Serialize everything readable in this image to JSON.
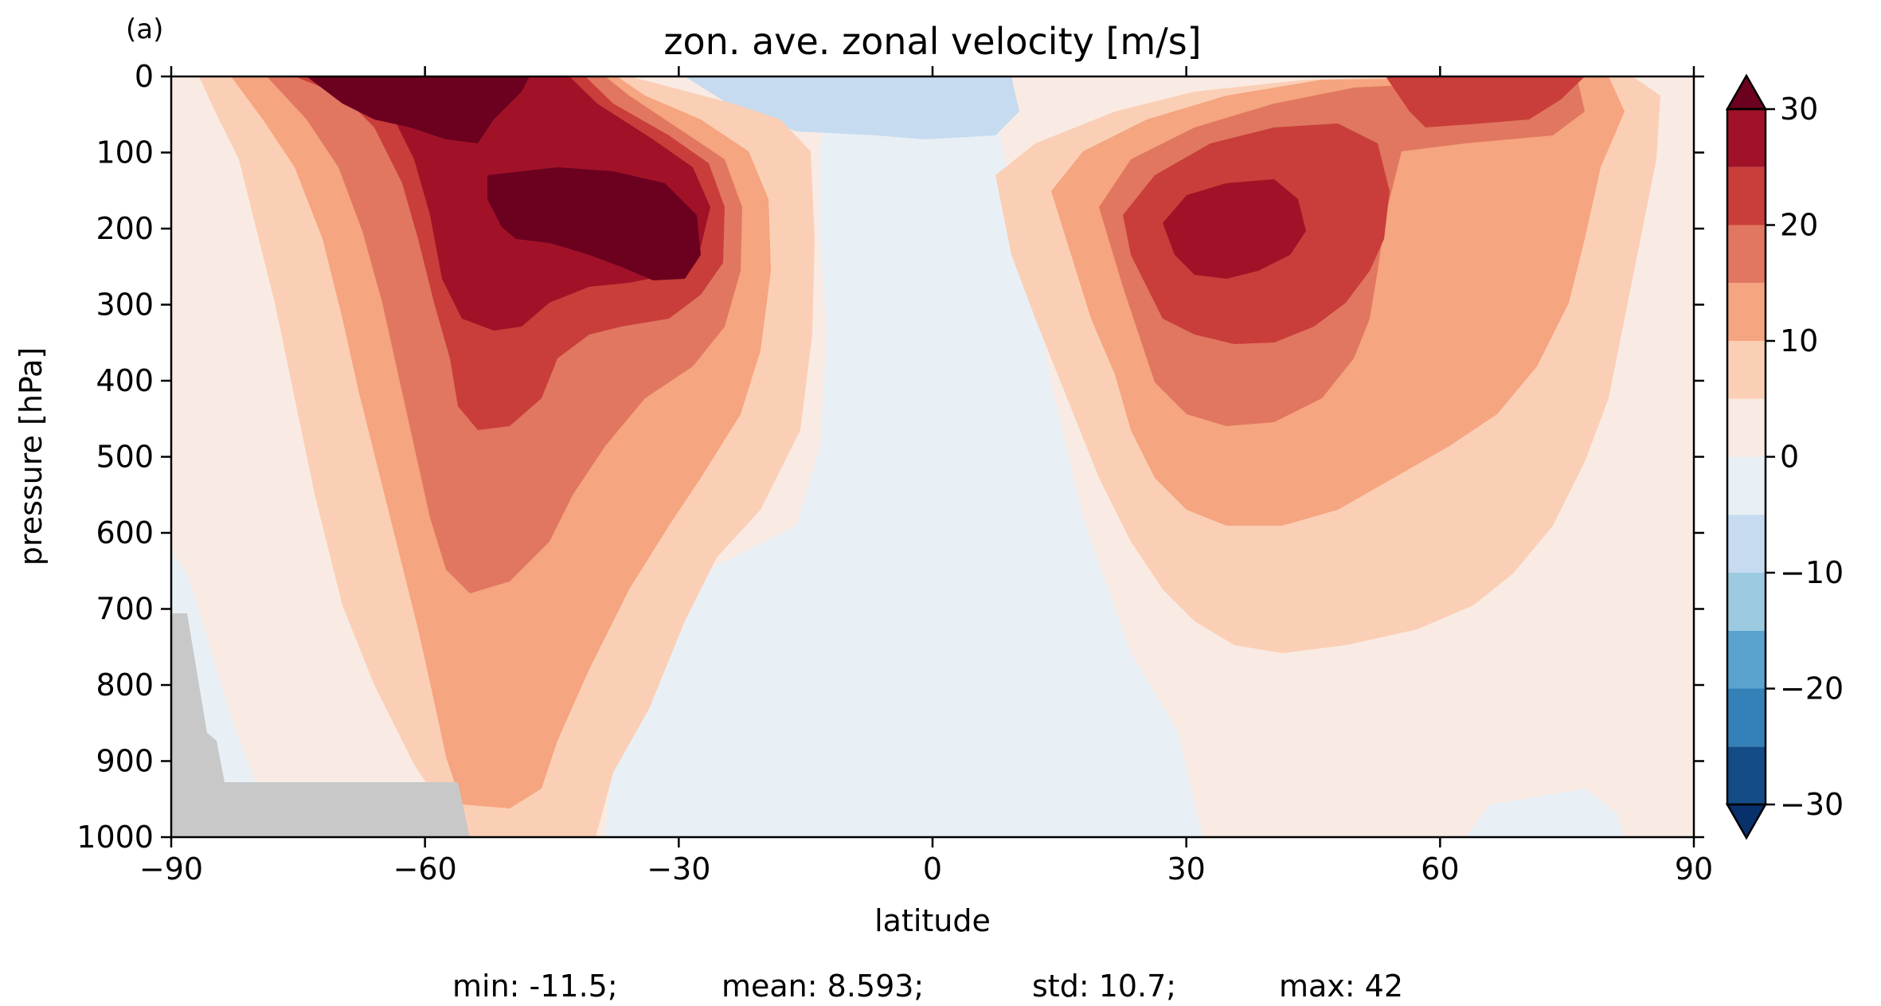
{
  "chart_data": {
    "type": "filled-contour",
    "panel_label": "(a)",
    "title": "zon. ave. zonal velocity [m/s]",
    "xlabel": "latitude",
    "ylabel": "pressure [hPa]",
    "xlim": [
      -90,
      90
    ],
    "ylim": [
      1000,
      0
    ],
    "y_inverted": true,
    "x_ticks": [
      -90,
      -60,
      -30,
      0,
      30,
      60,
      90
    ],
    "x_tick_labels": [
      "−90",
      "−60",
      "−30",
      "0",
      "30",
      "60",
      "90"
    ],
    "y_ticks": [
      0,
      100,
      200,
      300,
      400,
      500,
      600,
      700,
      800,
      900,
      1000
    ],
    "y_tick_labels": [
      "0",
      "100",
      "200",
      "300",
      "400",
      "500",
      "600",
      "700",
      "800",
      "900",
      "1000"
    ],
    "contour_levels": [
      -30,
      -25,
      -20,
      -15,
      -10,
      -5,
      0,
      5,
      10,
      15,
      20,
      25,
      30
    ],
    "level_colors": [
      "#144c87",
      "#3480b9",
      "#5ba3cf",
      "#9ccae1",
      "#c6dbef",
      "#e8f0f6",
      "#f9ebe3",
      "#fbcfb6",
      "#f5a57f",
      "#e17760",
      "#c93e3a",
      "#a11228",
      "#6c011f"
    ],
    "over_color": "#6c011f",
    "under_color": "#08306b",
    "colorbar": {
      "extend": "both",
      "ticks": [
        30,
        20,
        10,
        0,
        -10,
        -20,
        -30
      ],
      "tick_labels": [
        "30",
        "20",
        "10",
        "0",
        "−10",
        "−20",
        "−30"
      ]
    },
    "masked_color": "#c8c8c8",
    "features": [
      {
        "region": "SH jet core",
        "lat": -47,
        "p": 200,
        "value_range": ">30"
      },
      {
        "region": "SH jet near top",
        "lat": -60,
        "p": 20,
        "value_range": ">30"
      },
      {
        "region": "NH jet core",
        "lat": 37,
        "p": 200,
        "value_range": "25-30"
      },
      {
        "region": "NH upper polar",
        "lat": 68,
        "p": 40,
        "value_range": "20-25"
      },
      {
        "region": "tropical easterlies",
        "lat": 0,
        "p": 40,
        "value_range": "-10 to -5"
      }
    ],
    "stats": {
      "min": "min: -11.5;",
      "mean": "mean: 8.593;",
      "std": "std: 10.7;",
      "max": "max: 42"
    }
  }
}
